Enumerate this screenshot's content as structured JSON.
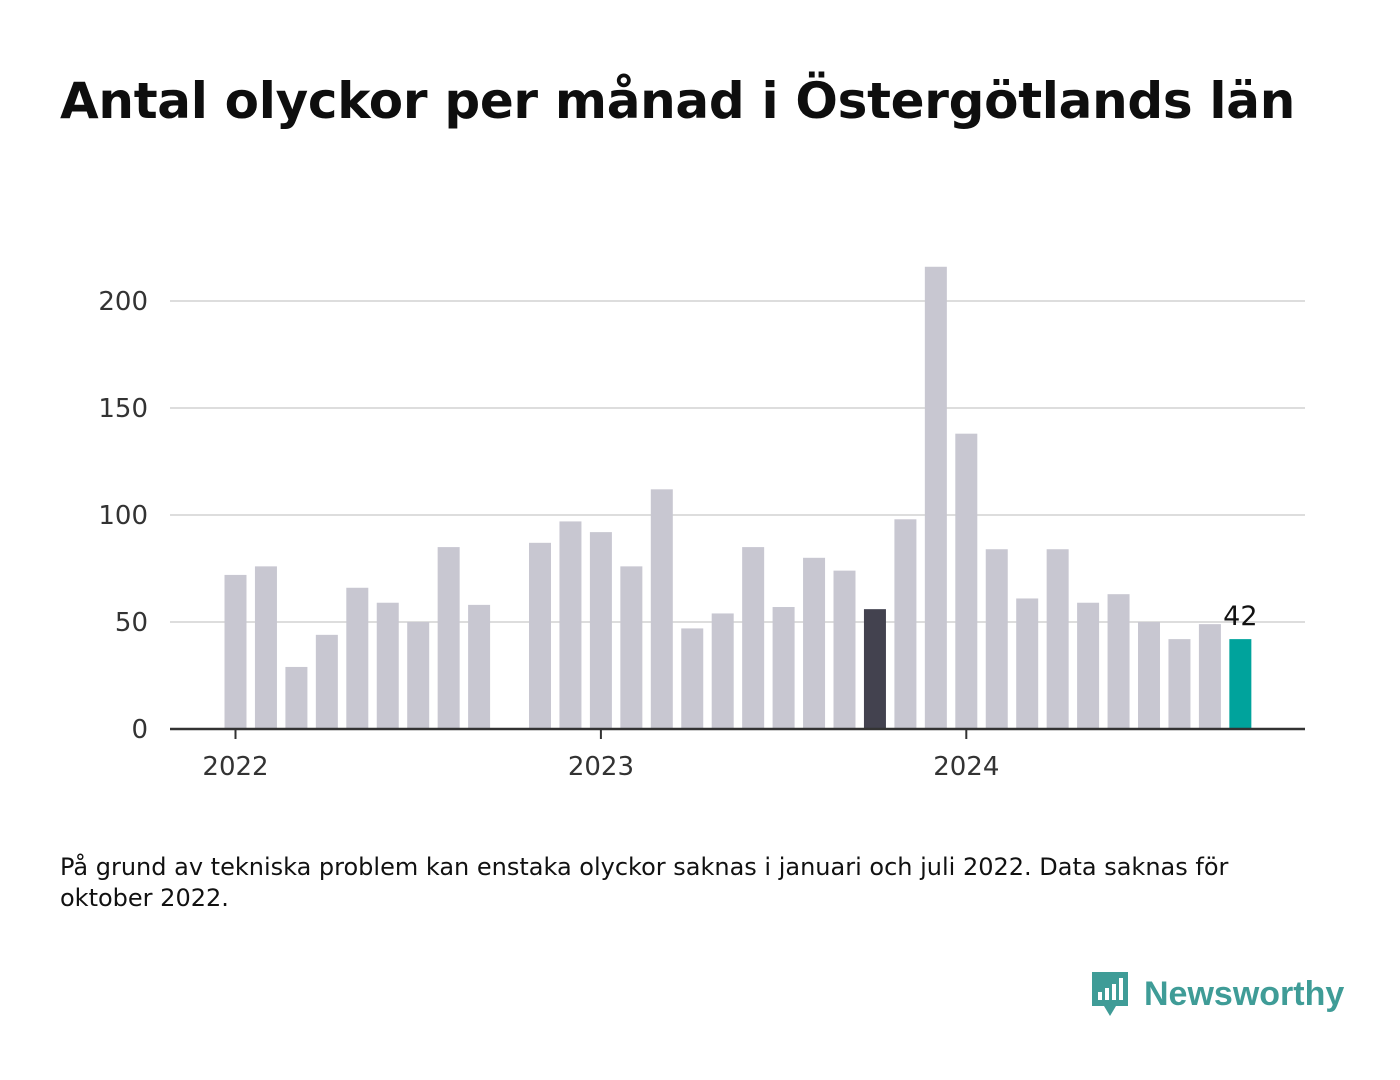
{
  "title": "Antal olyckor per månad i Östergötlands län",
  "note": "På grund av tekniska problem kan enstaka olyckor saknas i januari och juli 2022. Data saknas för oktober 2022.",
  "brand": {
    "name": "Newsworthy",
    "icon": "bar-chart-speech-bubble-icon",
    "color": "#3f9c97"
  },
  "colors": {
    "default_bar": "#c8c7d1",
    "highlight_previous_year": "#43424f",
    "highlight_current": "#00a39c",
    "grid": "#dddddd",
    "axis": "#333333"
  },
  "chart_data": {
    "type": "bar",
    "categories": [
      "2022-01",
      "2022-02",
      "2022-03",
      "2022-04",
      "2022-05",
      "2022-06",
      "2022-07",
      "2022-08",
      "2022-09",
      "2022-10",
      "2022-11",
      "2022-12",
      "2023-01",
      "2023-02",
      "2023-03",
      "2023-04",
      "2023-05",
      "2023-06",
      "2023-07",
      "2023-08",
      "2023-09",
      "2023-10",
      "2023-11",
      "2023-12",
      "2024-01",
      "2024-02",
      "2024-03",
      "2024-04",
      "2024-05",
      "2024-06",
      "2024-07",
      "2024-08",
      "2024-09",
      "2024-10"
    ],
    "values": [
      72,
      76,
      29,
      44,
      66,
      59,
      50,
      85,
      58,
      null,
      87,
      97,
      92,
      76,
      112,
      47,
      54,
      85,
      57,
      80,
      74,
      56,
      98,
      216,
      138,
      84,
      61,
      84,
      59,
      63,
      50,
      42,
      49,
      42
    ],
    "highlights": {
      "2023-10": "highlight_previous_year",
      "2024-10": "highlight_current"
    },
    "data_labels": [
      {
        "category": "2024-10",
        "text": "42"
      }
    ],
    "x_ticks": [
      {
        "category": "2022-01",
        "label": "2022"
      },
      {
        "category": "2023-01",
        "label": "2023"
      },
      {
        "category": "2024-01",
        "label": "2024"
      }
    ],
    "y_ticks": [
      0,
      50,
      100,
      150,
      200
    ],
    "ylim": [
      0,
      216
    ],
    "grid": true,
    "legend": "none"
  }
}
